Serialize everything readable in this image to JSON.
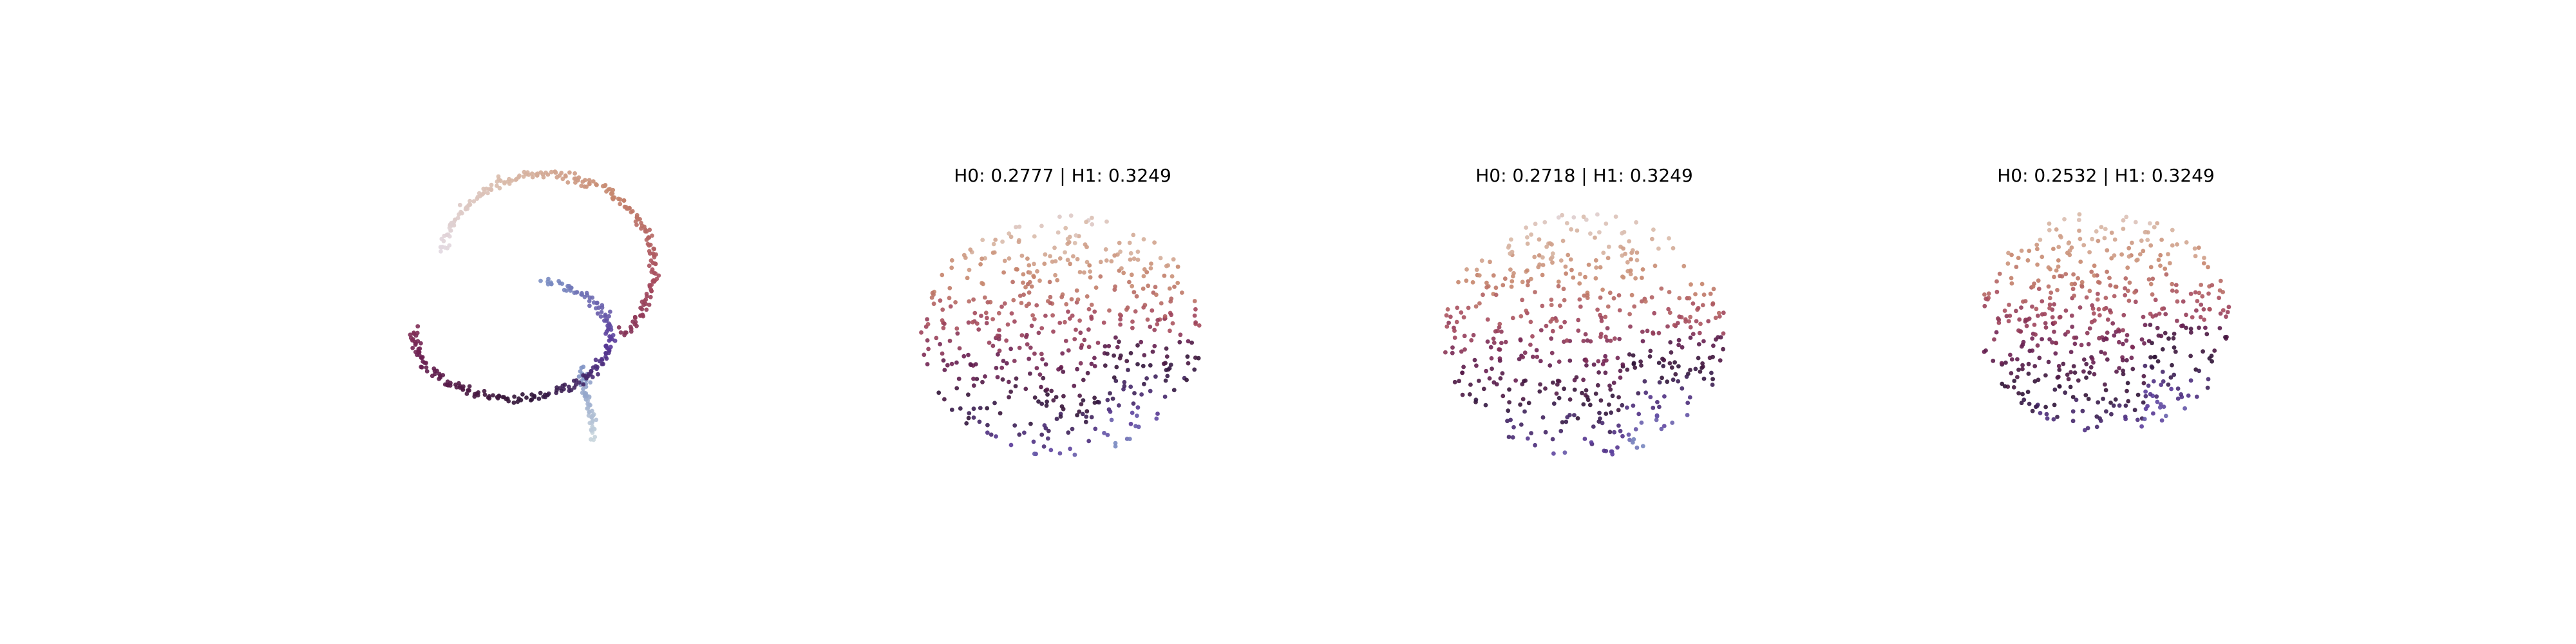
{
  "chart_data": [
    {
      "type": "scatter",
      "title": "",
      "xlim": [
        -1.3,
        1.3
      ],
      "ylim": [
        -1.3,
        1.3
      ],
      "grid": false,
      "axes_visible": false,
      "point_count": 500,
      "colormap": "twilight",
      "series": [
        {
          "shape": "spiral-loop",
          "center": [
            0.0,
            0.0
          ],
          "spread": 0.02
        }
      ]
    },
    {
      "type": "scatter",
      "title": "H0: 0.2777 | H1: 0.3249",
      "xlim": [
        -1.3,
        1.3
      ],
      "ylim": [
        -1.3,
        1.3
      ],
      "grid": false,
      "axes_visible": false,
      "point_count": 500,
      "colormap": "twilight",
      "series": [
        {
          "shape": "disk-cloud",
          "center": [
            0.0,
            0.0
          ],
          "spread": 1.0
        }
      ]
    },
    {
      "type": "scatter",
      "title": "H0: 0.2718 | H1: 0.3249",
      "xlim": [
        -1.3,
        1.3
      ],
      "ylim": [
        -1.3,
        1.3
      ],
      "grid": false,
      "axes_visible": false,
      "point_count": 500,
      "colormap": "twilight",
      "series": [
        {
          "shape": "disk-cloud",
          "center": [
            0.0,
            0.0
          ],
          "spread": 1.0
        }
      ]
    },
    {
      "type": "scatter",
      "title": "H0: 0.2532 | H1: 0.3249",
      "xlim": [
        -1.3,
        1.3
      ],
      "ylim": [
        -1.3,
        1.3
      ],
      "grid": false,
      "axes_visible": false,
      "point_count": 500,
      "colormap": "twilight",
      "series": [
        {
          "shape": "disk-cloud",
          "center": [
            0.0,
            0.0
          ],
          "spread": 0.9
        }
      ]
    }
  ],
  "colors": {
    "twilight_stops": [
      "#e2d9e2",
      "#d8b8a6",
      "#c6856b",
      "#a5495d",
      "#6a1f52",
      "#2f1436",
      "#5a3a9a",
      "#7b8ec3",
      "#c9d6dd"
    ]
  }
}
